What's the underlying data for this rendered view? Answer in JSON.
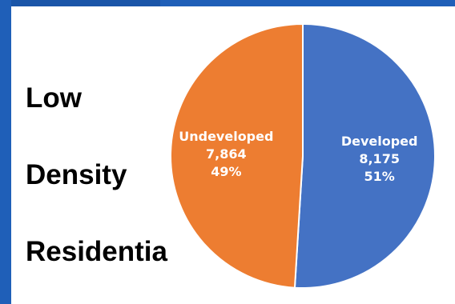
{
  "side_text": {
    "line1": "Low",
    "line2": "Density",
    "line3": "Residentia"
  },
  "chart_data": {
    "type": "pie",
    "title": "",
    "slices": [
      {
        "label": "Developed",
        "value": 8175,
        "value_label": "8,175",
        "percent_label": "51%",
        "color": "#4472c4"
      },
      {
        "label": "Undeveloped",
        "value": 7864,
        "value_label": "7,864",
        "percent_label": "49%",
        "color": "#ed7d31"
      }
    ],
    "start_angle_deg": 0,
    "direction": "clockwise",
    "legend": "none"
  }
}
